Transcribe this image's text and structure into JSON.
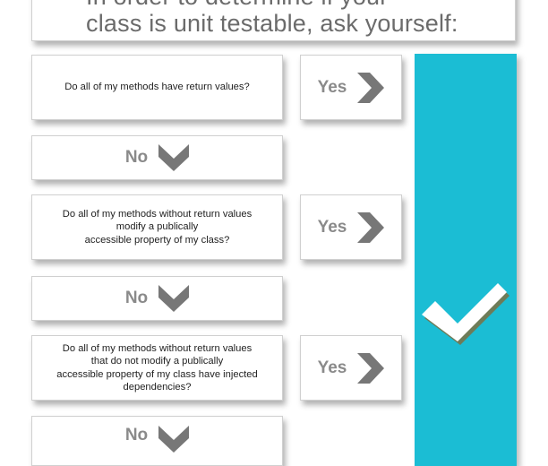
{
  "header": {
    "title_line1": "In order to determine if your",
    "title_line2": "class is unit testable, ask yourself:"
  },
  "questions": [
    {
      "text": "Do all of my methods have return values?",
      "yes": "Yes",
      "no": "No"
    },
    {
      "text": "Do all of my methods without return values\nmodify a publically\naccessible property of my class?",
      "yes": "Yes",
      "no": "No"
    },
    {
      "text": "Do all of my methods without return values\nthat do not modify a publically\naccessible property of my class have injected\ndependencies?",
      "yes": "Yes",
      "no": "No"
    }
  ],
  "icons": {
    "arrow": "chevron-right-icon",
    "down": "chevron-down-icon",
    "result": "checkmark-icon"
  },
  "colors": {
    "accent": "#1bbdd4",
    "chevron": "#777777",
    "answer_text": "#8a8a8a"
  }
}
